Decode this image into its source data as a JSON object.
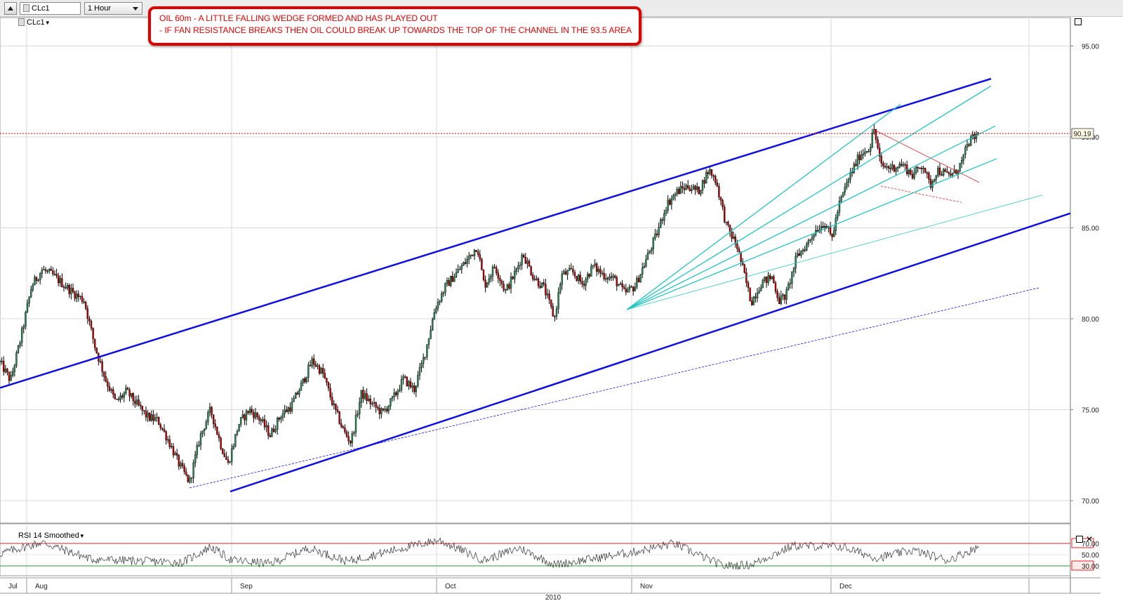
{
  "toolbar": {
    "symbol_value": "CLc1",
    "interval_value": "1 Hour"
  },
  "annotation": {
    "line1": "OIL 60m - A LITTLE FALLING WEDGE FORMED AND HAS PLAYED OUT",
    "line2": "- IF FAN RESISTANCE BREAKS THEN OIL COULD BREAK UP TOWARDS THE TOP OF THE CHANNEL IN THE 93.5 AREA"
  },
  "chart_data": [
    {
      "type": "candlestick",
      "series": [
        {
          "name": "CLc1"
        }
      ],
      "ylim": [
        69,
        96.5
      ],
      "ticks": [
        "70.00",
        "75.00",
        "80.00",
        "85.00",
        "90.00",
        "95.00"
      ],
      "last_price": 90.19,
      "last_price_label": "90.19",
      "x_categories": [
        "Jul",
        "Aug",
        "Sep",
        "Oct",
        "Nov",
        "Dec"
      ],
      "xlabel": "2010",
      "colors": {
        "up_candle": "#2e8b57",
        "down_candle": "#c00000",
        "wick": "#000000",
        "channel": "#1010e0",
        "fan": "#22c4c4",
        "wedge": "#e02020",
        "last_price_line": "#e00000"
      },
      "anchors": [
        {
          "t": 0,
          "p": 77.6
        },
        {
          "t": 15,
          "p": 76.6
        },
        {
          "t": 30,
          "p": 79.0
        },
        {
          "t": 45,
          "p": 81.8
        },
        {
          "t": 60,
          "p": 82.7
        },
        {
          "t": 75,
          "p": 82.4
        },
        {
          "t": 90,
          "p": 81.9
        },
        {
          "t": 105,
          "p": 81.4
        },
        {
          "t": 120,
          "p": 81.0
        },
        {
          "t": 135,
          "p": 78.5
        },
        {
          "t": 150,
          "p": 76.7
        },
        {
          "t": 165,
          "p": 75.4
        },
        {
          "t": 180,
          "p": 76.0
        },
        {
          "t": 195,
          "p": 75.3
        },
        {
          "t": 210,
          "p": 74.6
        },
        {
          "t": 225,
          "p": 74.4
        },
        {
          "t": 240,
          "p": 73.3
        },
        {
          "t": 255,
          "p": 72.0
        },
        {
          "t": 270,
          "p": 71.0
        },
        {
          "t": 285,
          "p": 73.5
        },
        {
          "t": 300,
          "p": 75.0
        },
        {
          "t": 315,
          "p": 73.0
        },
        {
          "t": 325,
          "p": 72.0
        },
        {
          "t": 340,
          "p": 74.2
        },
        {
          "t": 355,
          "p": 75.0
        },
        {
          "t": 370,
          "p": 74.5
        },
        {
          "t": 385,
          "p": 73.6
        },
        {
          "t": 400,
          "p": 74.7
        },
        {
          "t": 415,
          "p": 75.2
        },
        {
          "t": 430,
          "p": 76.4
        },
        {
          "t": 445,
          "p": 77.7
        },
        {
          "t": 460,
          "p": 77.0
        },
        {
          "t": 475,
          "p": 75.2
        },
        {
          "t": 490,
          "p": 73.8
        },
        {
          "t": 500,
          "p": 73.2
        },
        {
          "t": 515,
          "p": 75.9
        },
        {
          "t": 530,
          "p": 75.3
        },
        {
          "t": 545,
          "p": 74.8
        },
        {
          "t": 560,
          "p": 75.6
        },
        {
          "t": 575,
          "p": 76.7
        },
        {
          "t": 590,
          "p": 76.1
        },
        {
          "t": 605,
          "p": 78.0
        },
        {
          "t": 620,
          "p": 80.6
        },
        {
          "t": 635,
          "p": 81.8
        },
        {
          "t": 650,
          "p": 82.5
        },
        {
          "t": 665,
          "p": 83.2
        },
        {
          "t": 680,
          "p": 84.0
        },
        {
          "t": 690,
          "p": 81.8
        },
        {
          "t": 705,
          "p": 82.9
        },
        {
          "t": 720,
          "p": 81.5
        },
        {
          "t": 735,
          "p": 82.6
        },
        {
          "t": 745,
          "p": 83.6
        },
        {
          "t": 760,
          "p": 82.3
        },
        {
          "t": 775,
          "p": 81.7
        },
        {
          "t": 790,
          "p": 80.0
        },
        {
          "t": 800,
          "p": 82.4
        },
        {
          "t": 815,
          "p": 82.6
        },
        {
          "t": 830,
          "p": 81.9
        },
        {
          "t": 845,
          "p": 82.9
        },
        {
          "t": 860,
          "p": 82.4
        },
        {
          "t": 875,
          "p": 82.2
        },
        {
          "t": 890,
          "p": 81.4
        },
        {
          "t": 905,
          "p": 81.8
        },
        {
          "t": 920,
          "p": 83.2
        },
        {
          "t": 935,
          "p": 84.6
        },
        {
          "t": 950,
          "p": 86.3
        },
        {
          "t": 965,
          "p": 87.0
        },
        {
          "t": 980,
          "p": 87.3
        },
        {
          "t": 995,
          "p": 87.0
        },
        {
          "t": 1010,
          "p": 88.2
        },
        {
          "t": 1020,
          "p": 87.6
        },
        {
          "t": 1035,
          "p": 85.1
        },
        {
          "t": 1050,
          "p": 84.0
        },
        {
          "t": 1060,
          "p": 82.5
        },
        {
          "t": 1070,
          "p": 80.9
        },
        {
          "t": 1085,
          "p": 82.0
        },
        {
          "t": 1100,
          "p": 82.3
        },
        {
          "t": 1110,
          "p": 81.0
        },
        {
          "t": 1120,
          "p": 81.3
        },
        {
          "t": 1135,
          "p": 83.4
        },
        {
          "t": 1150,
          "p": 84.1
        },
        {
          "t": 1160,
          "p": 84.8
        },
        {
          "t": 1175,
          "p": 85.3
        },
        {
          "t": 1185,
          "p": 84.4
        },
        {
          "t": 1195,
          "p": 86.2
        },
        {
          "t": 1210,
          "p": 87.8
        },
        {
          "t": 1225,
          "p": 89.0
        },
        {
          "t": 1240,
          "p": 89.5
        },
        {
          "t": 1245,
          "p": 90.5
        },
        {
          "t": 1255,
          "p": 88.4
        },
        {
          "t": 1270,
          "p": 88.3
        },
        {
          "t": 1285,
          "p": 88.5
        },
        {
          "t": 1300,
          "p": 87.9
        },
        {
          "t": 1315,
          "p": 88.5
        },
        {
          "t": 1325,
          "p": 87.3
        },
        {
          "t": 1335,
          "p": 88.2
        },
        {
          "t": 1350,
          "p": 87.9
        },
        {
          "t": 1360,
          "p": 88.0
        },
        {
          "t": 1370,
          "p": 88.6
        },
        {
          "t": 1380,
          "p": 89.7
        },
        {
          "t": 1395,
          "p": 90.2
        }
      ],
      "trendlines": [
        {
          "name": "channel-upper",
          "points": [
            [
              0,
              76.2
            ],
            [
              1412,
              93.2
            ]
          ],
          "width": 2.5
        },
        {
          "name": "channel-lower",
          "points": [
            [
              328,
              70.5
            ],
            [
              1525,
              85.8
            ]
          ],
          "width": 2.5
        },
        {
          "name": "support-thin",
          "points": [
            [
              270,
              70.7
            ],
            [
              1480,
              81.7
            ]
          ],
          "width": 0.8,
          "dashed": true
        },
        {
          "name": "wedge-upper",
          "points": [
            [
              1245,
              90.4
            ],
            [
              1395,
              87.5
            ]
          ],
          "width": 0.8
        },
        {
          "name": "wedge-lower",
          "points": [
            [
              1255,
              87.3
            ],
            [
              1370,
              86.4
            ]
          ],
          "width": 0.8,
          "dashed": true
        }
      ],
      "fan_origin": [
        893,
        80.5
      ],
      "fan_ends": [
        [
          1283,
          91.8
        ],
        [
          1412,
          92.8
        ],
        [
          1418,
          90.6
        ],
        [
          1420,
          88.8
        ],
        [
          1485,
          86.8
        ]
      ],
      "month_bounds": [
        0,
        38,
        330,
        622,
        900,
        1184,
        1466,
        1525
      ],
      "grid_lines": [
        38,
        330,
        622,
        900,
        1184,
        1466
      ]
    },
    {
      "type": "line",
      "title": "RSI 14 Smoothed",
      "ylim": [
        20,
        80
      ],
      "ticks": [
        "70.00",
        "50.00",
        "30.00"
      ],
      "levels": [
        70,
        30
      ],
      "colors": {
        "line": "#333333",
        "upper_level": "#e02020",
        "lower_level": "#20a020"
      },
      "anchors": [
        {
          "t": 0,
          "p": 52
        },
        {
          "t": 60,
          "p": 72
        },
        {
          "t": 130,
          "p": 42
        },
        {
          "t": 260,
          "p": 36
        },
        {
          "t": 300,
          "p": 64
        },
        {
          "t": 330,
          "p": 40
        },
        {
          "t": 385,
          "p": 34
        },
        {
          "t": 440,
          "p": 62
        },
        {
          "t": 495,
          "p": 38
        },
        {
          "t": 560,
          "p": 58
        },
        {
          "t": 625,
          "p": 76
        },
        {
          "t": 690,
          "p": 40
        },
        {
          "t": 740,
          "p": 62
        },
        {
          "t": 790,
          "p": 32
        },
        {
          "t": 900,
          "p": 54
        },
        {
          "t": 960,
          "p": 70
        },
        {
          "t": 1030,
          "p": 30
        },
        {
          "t": 1070,
          "p": 32
        },
        {
          "t": 1130,
          "p": 66
        },
        {
          "t": 1200,
          "p": 64
        },
        {
          "t": 1250,
          "p": 44
        },
        {
          "t": 1300,
          "p": 58
        },
        {
          "t": 1350,
          "p": 40
        },
        {
          "t": 1395,
          "p": 64
        }
      ]
    }
  ]
}
